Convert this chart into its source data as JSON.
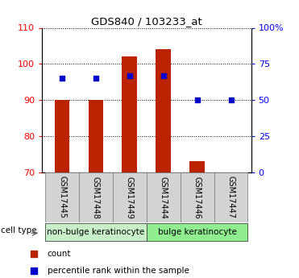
{
  "title": "GDS840 / 103233_at",
  "samples": [
    "GSM17445",
    "GSM17448",
    "GSM17449",
    "GSM17444",
    "GSM17446",
    "GSM17447"
  ],
  "counts": [
    90,
    90,
    102,
    104,
    73,
    70
  ],
  "percentile_ranks": [
    65,
    65,
    67,
    67,
    50,
    50
  ],
  "cell_type_labels": [
    "non-bulge keratinocyte",
    "bulge keratinocyte"
  ],
  "cell_type_colors": [
    "#c8f0c8",
    "#90ee90"
  ],
  "bar_color": "#bb2200",
  "dot_color": "#0000cc",
  "ylim_left": [
    70,
    110
  ],
  "ylim_right": [
    0,
    100
  ],
  "yticks_left": [
    70,
    80,
    90,
    100,
    110
  ],
  "yticks_right": [
    0,
    25,
    50,
    75,
    100
  ],
  "ytick_labels_right": [
    "0",
    "25",
    "50",
    "75",
    "100%"
  ],
  "bar_width": 0.45,
  "legend_count_label": "count",
  "legend_pct_label": "percentile rank within the sample"
}
